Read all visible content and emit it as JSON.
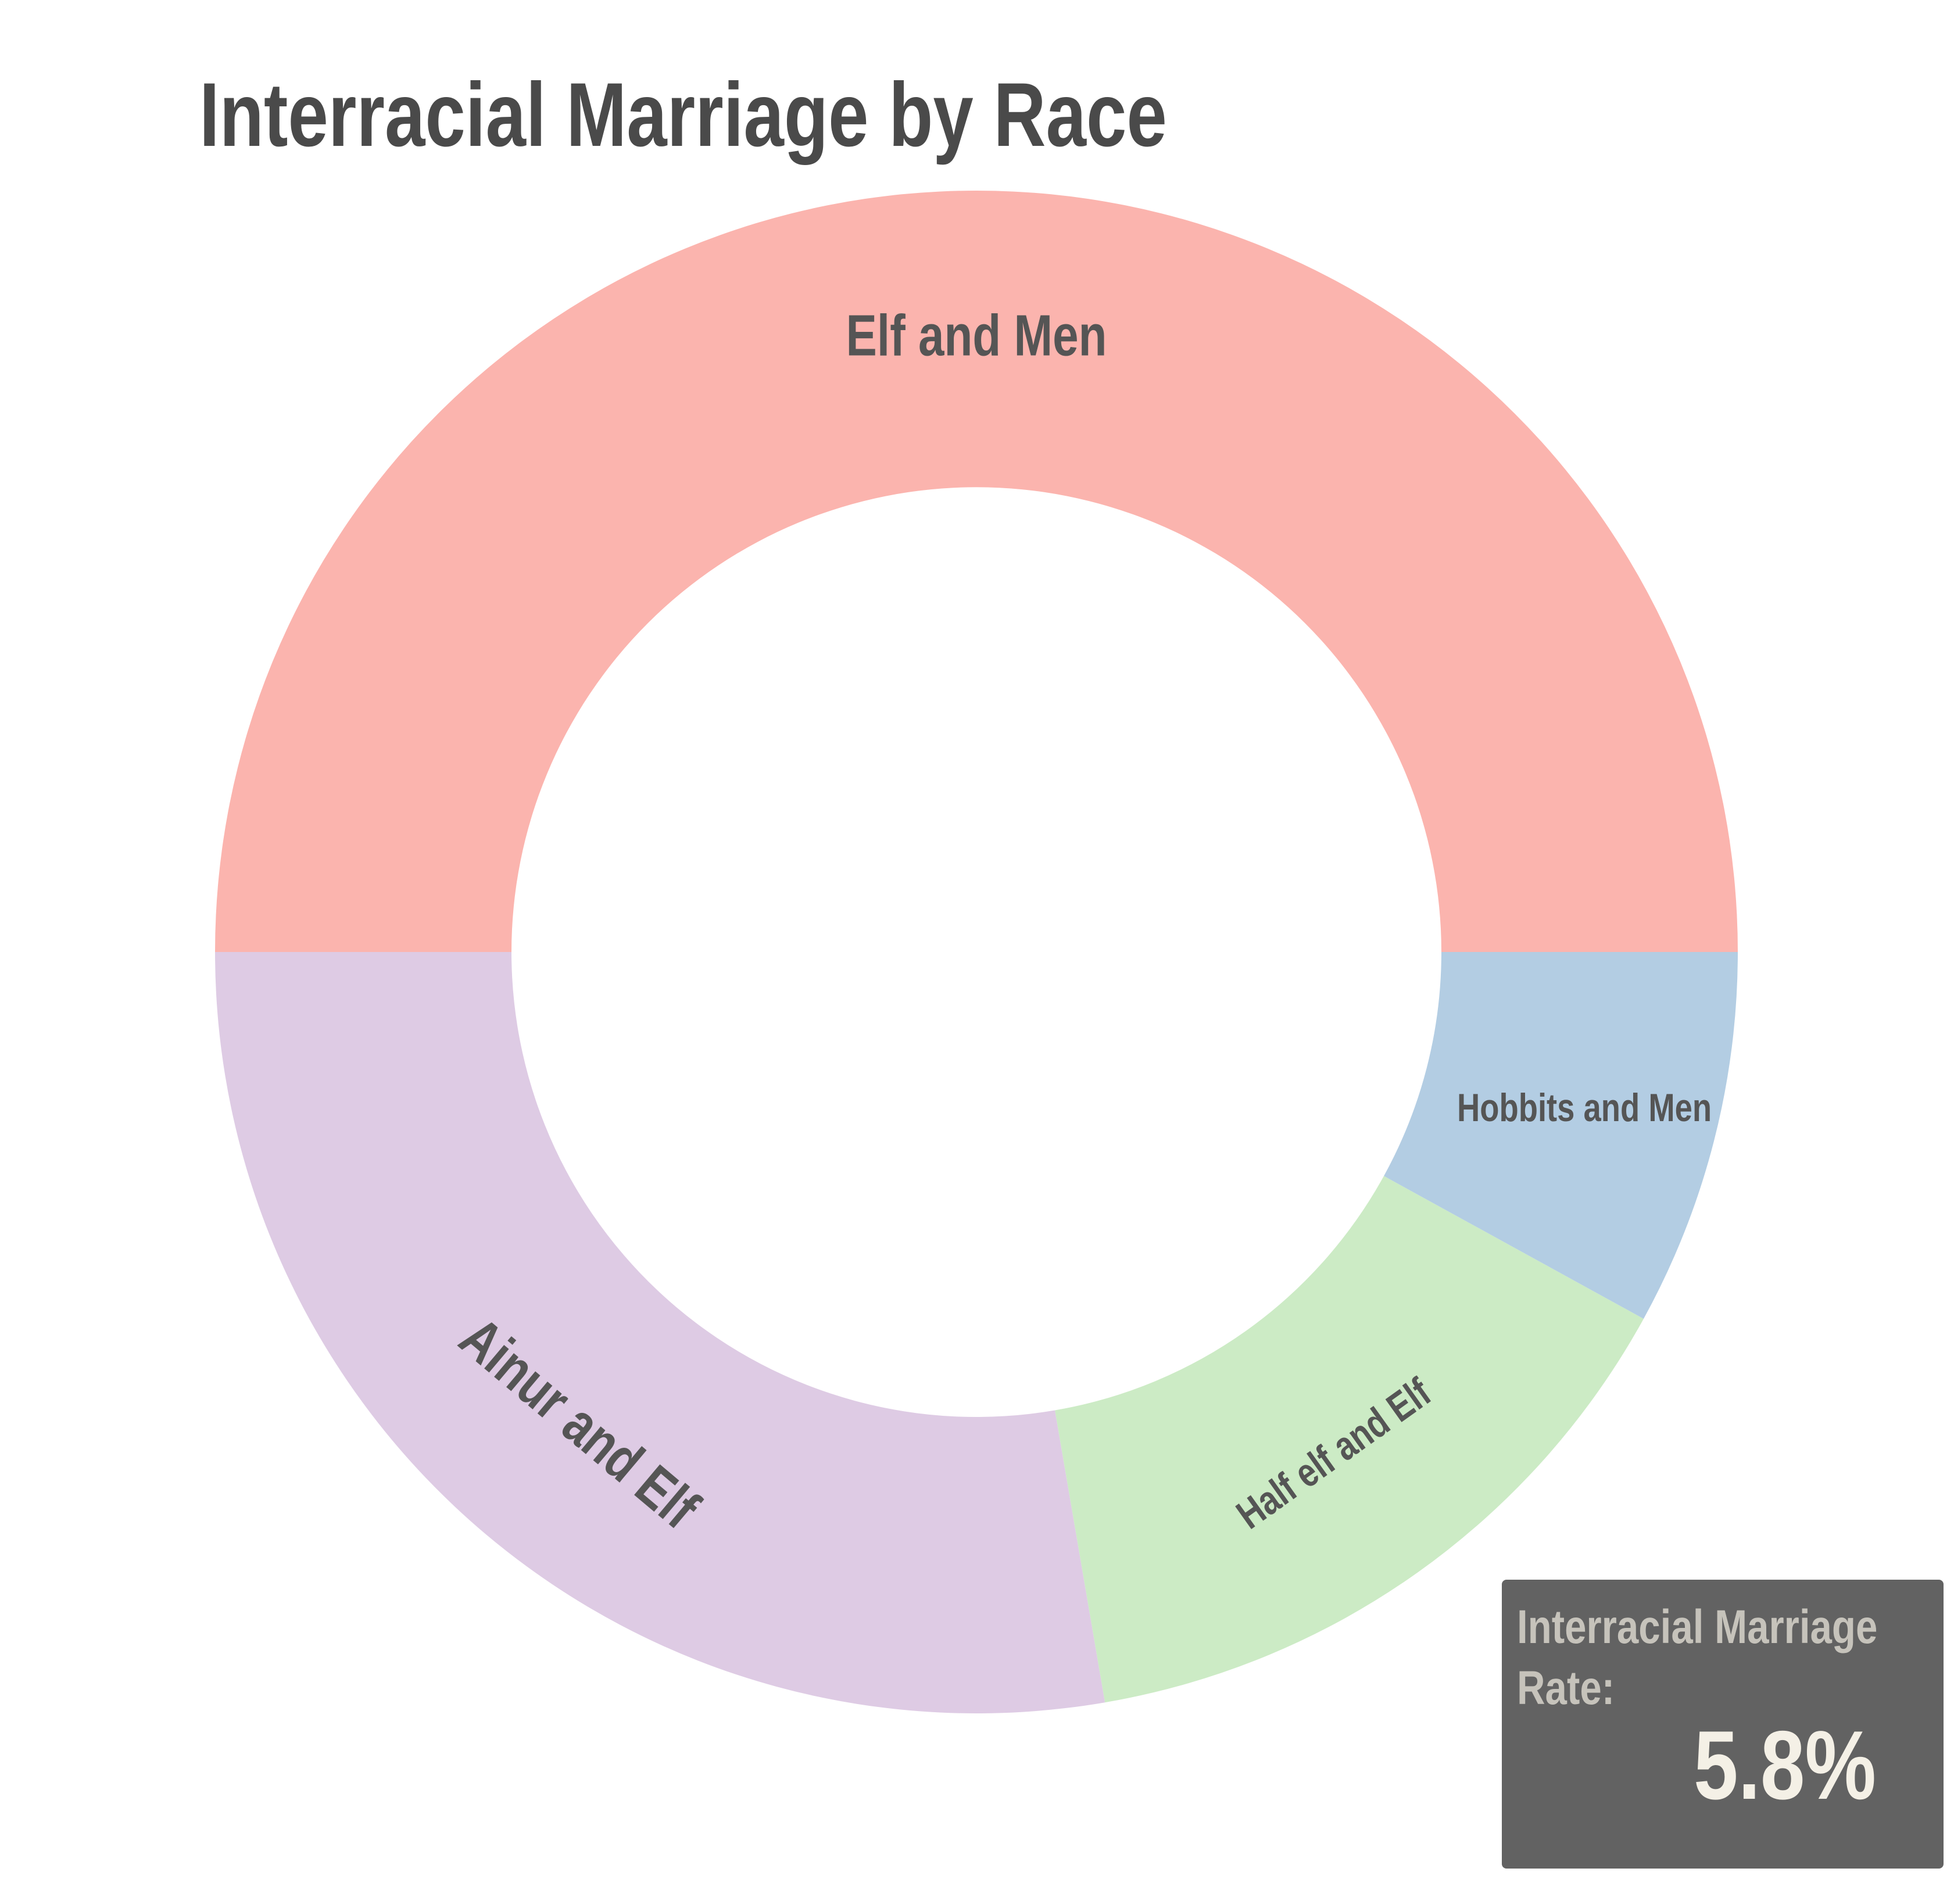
{
  "chart_data": {
    "type": "pie",
    "title": "Interracial Marriage by Race",
    "donut": true,
    "slices": [
      {
        "label": "Elf and Men",
        "value": 50.0,
        "color": "#fbb4ae"
      },
      {
        "label": "Ainur and Elf",
        "value": 27.7,
        "color": "#decbe4"
      },
      {
        "label": "Half elf and Elf",
        "value": 14.3,
        "color": "#ccebc5"
      },
      {
        "label": "Hobbits and Men",
        "value": 8.0,
        "color": "#b3cde3"
      }
    ]
  },
  "rate_box": {
    "label": "Interracial Marriage Rate:",
    "value": "5.8%",
    "background": "#626262"
  }
}
